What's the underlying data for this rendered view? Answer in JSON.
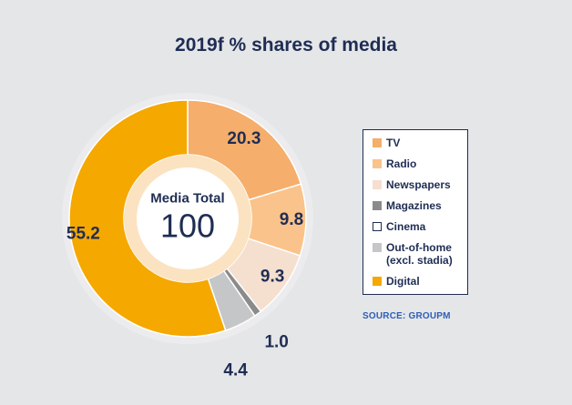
{
  "chart_data": {
    "type": "donut",
    "title": "2019f % shares of media",
    "center_label": "Media Total",
    "center_value": "100",
    "series": [
      {
        "name": "TV",
        "value": 20.3,
        "label": "20.3",
        "color": "#f5ae6b"
      },
      {
        "name": "Radio",
        "value": 9.8,
        "label": "9.8",
        "color": "#fac38b"
      },
      {
        "name": "Newspapers",
        "value": 9.3,
        "label": "9.3",
        "color": "#f5dfcf"
      },
      {
        "name": "Magazines",
        "value": 1.0,
        "label": "1.0",
        "color": "#8b8b8b"
      },
      {
        "name": "Cinema",
        "value": 0.0,
        "label": "",
        "color": "#ffffff"
      },
      {
        "name": "Out-of-home\n(excl. stadia)",
        "value": 4.4,
        "label": "4.4",
        "color": "#c5c6c8"
      },
      {
        "name": "Digital",
        "value": 55.2,
        "label": "55.2",
        "color": "#f5a800"
      }
    ],
    "legend_position": "right"
  },
  "source": {
    "prefix": "SOURCE: ",
    "name": "GROUPM"
  }
}
